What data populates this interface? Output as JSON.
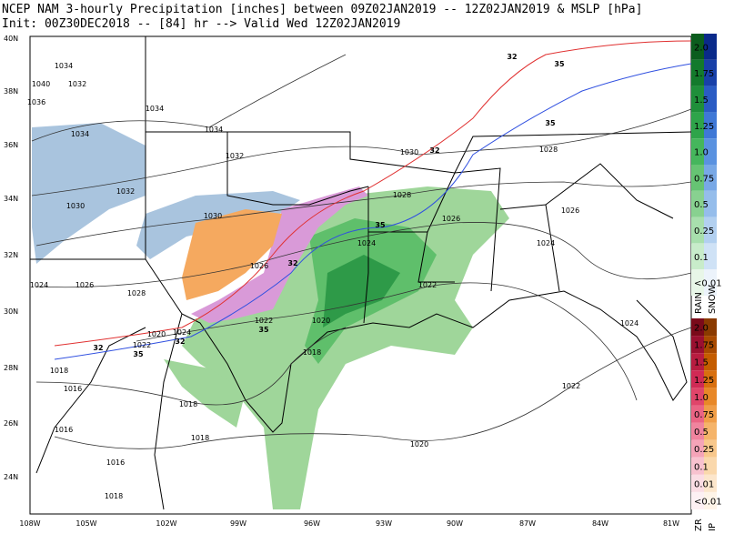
{
  "header": {
    "line1": "NCEP NAM 3-hourly Precipitation [inches] between 09Z02JAN2019 -- 12Z02JAN2019 & MSLP [hPa]",
    "line2": "Init: 00Z30DEC2018 -- [84] hr --> Valid Wed 12Z02JAN2019"
  },
  "map": {
    "lat_labels": [
      "40N",
      "38N",
      "36N",
      "34N",
      "32N",
      "30N",
      "28N",
      "26N",
      "24N"
    ],
    "lon_labels": [
      "108W",
      "105W",
      "102W",
      "99W",
      "96W",
      "93W",
      "90W",
      "87W",
      "84W",
      "81W"
    ],
    "isobar_labels": [
      "1034",
      "1040",
      "1032",
      "1036",
      "1034",
      "1034",
      "1034",
      "1032",
      "1032",
      "1030",
      "1030",
      "1030",
      "1028",
      "1028",
      "1026",
      "1026",
      "1026",
      "1024",
      "1024",
      "1024",
      "1026",
      "1028",
      "1022",
      "1022",
      "1024",
      "1020",
      "1020",
      "1022",
      "1018",
      "1018",
      "1016",
      "1018",
      "1016",
      "1018",
      "1016",
      "1018",
      "1022",
      "1020",
      "1024"
    ],
    "isotherm_labels": [
      "32",
      "35",
      "35",
      "32",
      "35",
      "32",
      "35",
      "32",
      "32",
      "35"
    ]
  },
  "legend": {
    "rain_snow": {
      "labels": [
        "2.0",
        "1.75",
        "1.5",
        "1.25",
        "1.0",
        "0.75",
        "0.5",
        "0.25",
        "0.1",
        "<0.01"
      ],
      "rain": "RAIN",
      "snow": "SNOW"
    },
    "zr_ip": {
      "labels": [
        "2.0",
        "1.75",
        "1.5",
        "1.25",
        "1.0",
        "0.75",
        "0.5",
        "0.25",
        "0.1",
        "0.01",
        "<0.01"
      ],
      "zr": "ZR",
      "ip": "IP"
    }
  }
}
